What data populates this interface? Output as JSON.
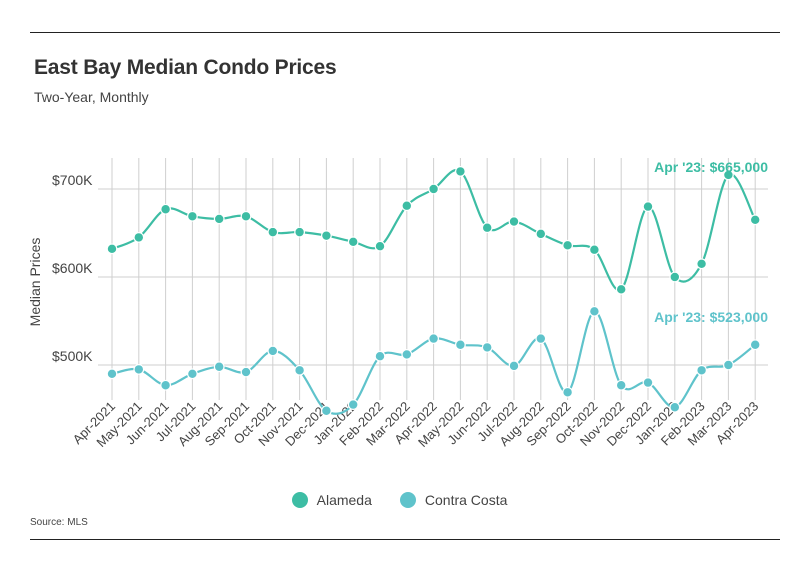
{
  "title": "East Bay Median Condo Prices",
  "subtitle": "Two-Year, Monthly",
  "source": "Source: MLS",
  "chart_data": {
    "type": "line",
    "title": "East Bay Median Condo Prices",
    "subtitle": "Two-Year, Monthly",
    "xlabel": "",
    "ylabel": "Median Prices",
    "ylim": [
      400000,
      760000
    ],
    "yticks": [
      {
        "value": 500000,
        "label": "$500K"
      },
      {
        "value": 600000,
        "label": "$600K"
      },
      {
        "value": 700000,
        "label": "$700K"
      }
    ],
    "grid": "on",
    "legend_placement": "bottom-center",
    "categories": [
      "Apr-2021",
      "May-2021",
      "Jun-2021",
      "Jul-2021",
      "Aug-2021",
      "Sep-2021",
      "Oct-2021",
      "Nov-2021",
      "Dec-2021",
      "Jan-2022",
      "Feb-2022",
      "Mar-2022",
      "Apr-2022",
      "May-2022",
      "Jun-2022",
      "Jul-2022",
      "Aug-2022",
      "Sep-2022",
      "Oct-2022",
      "Nov-2022",
      "Dec-2022",
      "Jan-2023",
      "Feb-2023",
      "Mar-2023",
      "Apr-2023"
    ],
    "series": [
      {
        "name": "Alameda",
        "color": "#3dbda4",
        "values": [
          632000,
          645000,
          677000,
          669000,
          666000,
          669000,
          651000,
          651000,
          647000,
          640000,
          635000,
          681000,
          700000,
          720000,
          656000,
          663000,
          649000,
          636000,
          631000,
          586000,
          680000,
          600000,
          615000,
          716000,
          665000
        ],
        "annotation": "Apr '23: $665,000"
      },
      {
        "name": "Contra Costa",
        "color": "#5fc3cb",
        "values": [
          490000,
          495000,
          477000,
          490000,
          498000,
          492000,
          516000,
          494000,
          448000,
          455000,
          510000,
          512000,
          530000,
          523000,
          520000,
          499000,
          530000,
          469000,
          561000,
          477000,
          480000,
          452000,
          494000,
          500000,
          523000
        ],
        "annotation": "Apr '23: $523,000"
      }
    ]
  }
}
